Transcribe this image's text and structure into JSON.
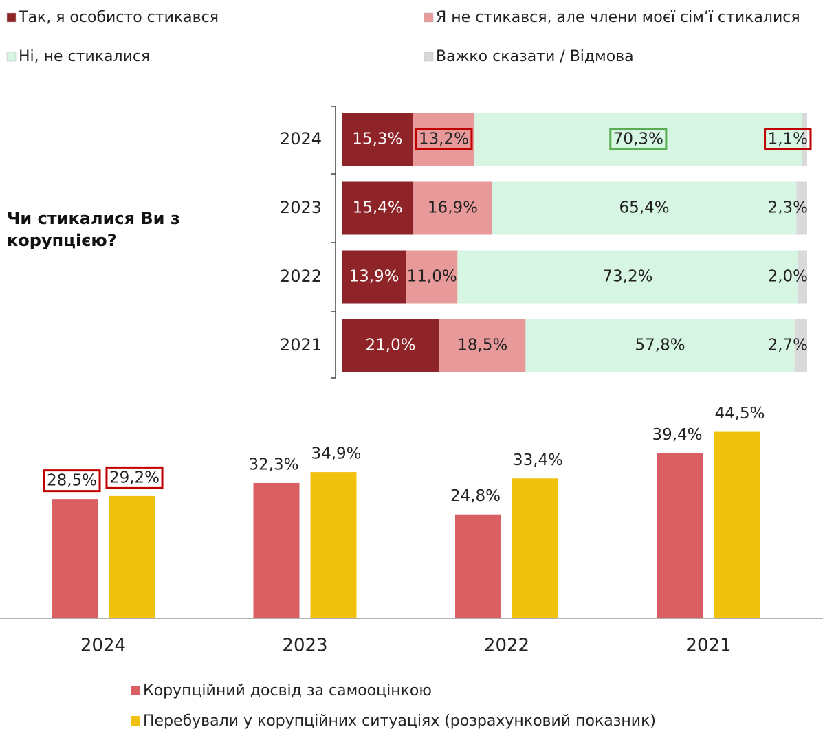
{
  "chart_data": [
    {
      "type": "bar",
      "orientation": "horizontal",
      "stacked": true,
      "title": "Чи стикалися Ви з корупцією?",
      "categories": [
        "2024",
        "2023",
        "2022",
        "2021"
      ],
      "series": [
        {
          "name": "Так, я особисто стикався",
          "color": "#8e2328",
          "values": [
            15.3,
            15.4,
            13.9,
            21.0
          ],
          "value_labels": [
            "15,3%",
            "15,4%",
            "13,9%",
            "21,0%"
          ]
        },
        {
          "name": "Я не стикався, але члени моєї сім’ї стикалися",
          "color": "#e89a9a",
          "values": [
            13.2,
            16.9,
            11.0,
            18.5
          ],
          "value_labels": [
            "13,2%",
            "16,9%",
            "11,0%",
            "18,5%"
          ]
        },
        {
          "name": "Ні, не стикалися",
          "color": "#d6f5e3",
          "values": [
            70.3,
            65.4,
            73.2,
            57.8
          ],
          "value_labels": [
            "70,3%",
            "65,4%",
            "73,2%",
            "57,8%"
          ]
        },
        {
          "name": "Важко сказати / Відмова",
          "color": "#d9d9d9",
          "values": [
            1.1,
            2.3,
            2.0,
            2.7
          ],
          "value_labels": [
            "1,1%",
            "2,3%",
            "2,0%",
            "2,7%"
          ]
        }
      ]
    },
    {
      "type": "bar",
      "categories": [
        "2024",
        "2023",
        "2022",
        "2021"
      ],
      "series": [
        {
          "name": "Корупційний досвід за самооцінкою",
          "color": "#d95f63",
          "values": [
            28.5,
            32.3,
            24.8,
            39.4
          ],
          "value_labels": [
            "28,5%",
            "32,3%",
            "24,8%",
            "39,4%"
          ]
        },
        {
          "name": "Перебували у корупційних ситуаціях (розрахунковий показник)",
          "color": "#f0c20e",
          "values": [
            29.2,
            34.9,
            33.4,
            44.5
          ],
          "value_labels": [
            "29,2%",
            "34,9%",
            "33,4%",
            "44,5%"
          ]
        }
      ]
    }
  ]
}
